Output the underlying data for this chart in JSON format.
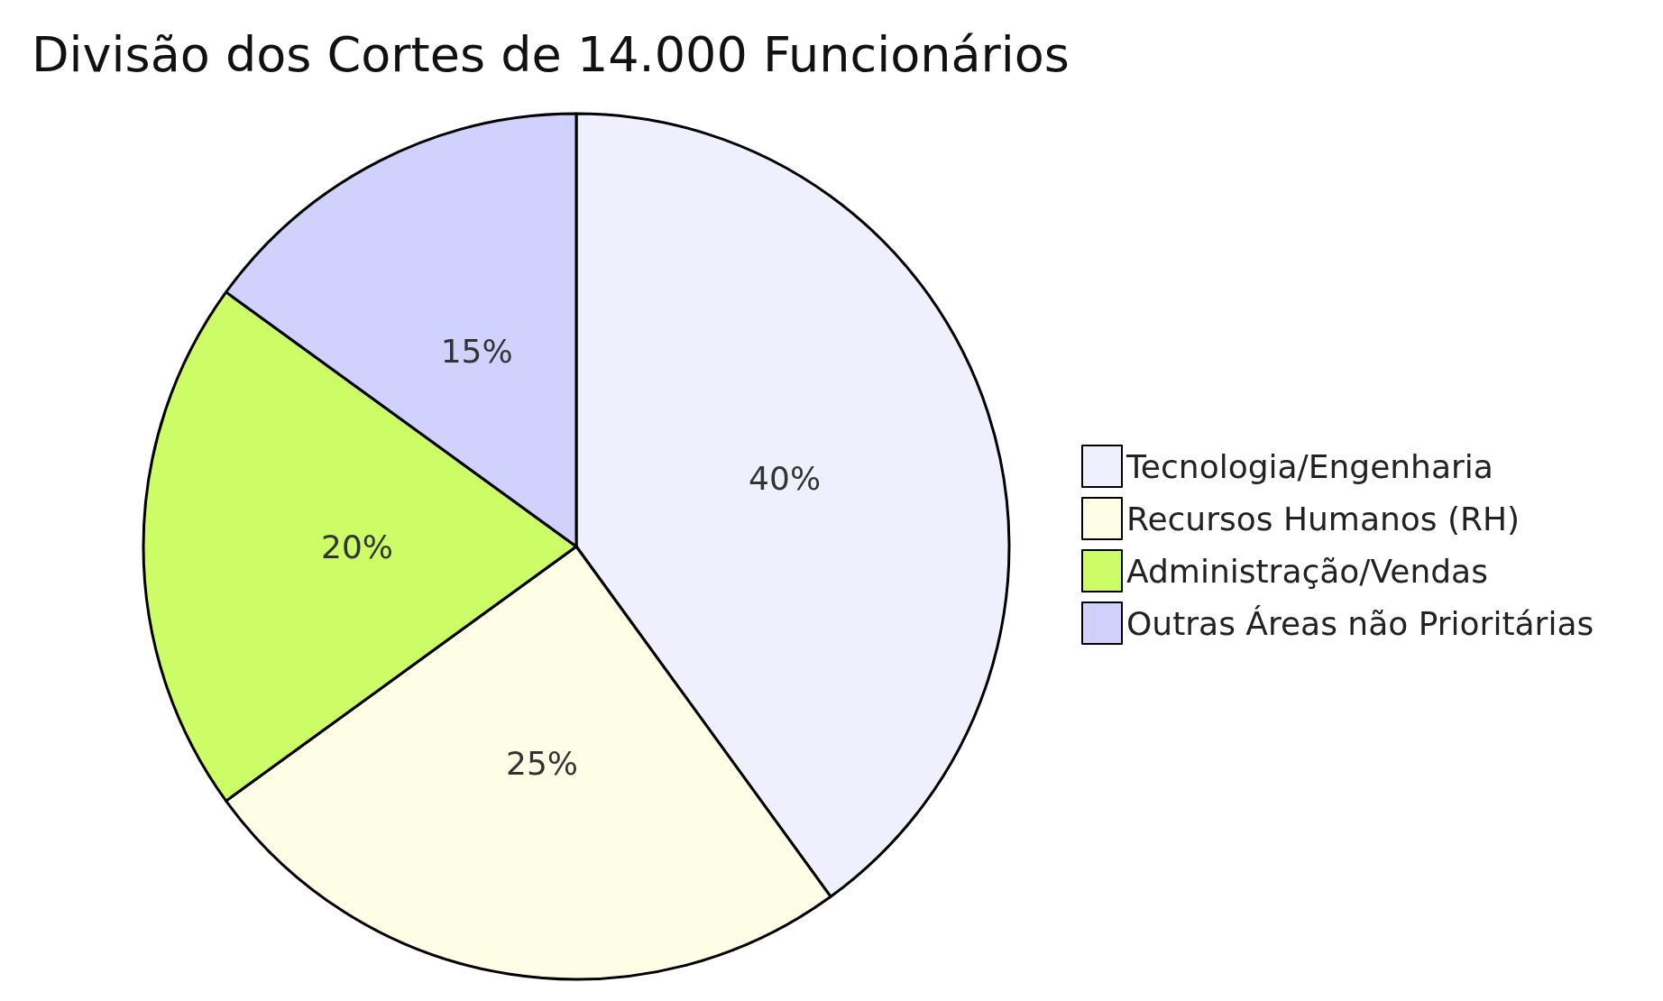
{
  "chart_data": {
    "type": "pie",
    "title": "Divisão dos Cortes de 14.000 Funcionários",
    "categories": [
      "Tecnologia/Engenharia",
      "Recursos Humanos (RH)",
      "Administração/Vendas",
      "Outras Áreas não Prioritárias"
    ],
    "values": [
      40,
      25,
      20,
      15
    ],
    "colors": [
      "#efeffd",
      "#fefee6",
      "#ccfd66",
      "#d1d1fd"
    ],
    "value_labels": [
      "40%",
      "25%",
      "20%",
      "15%"
    ],
    "legend": "right"
  }
}
